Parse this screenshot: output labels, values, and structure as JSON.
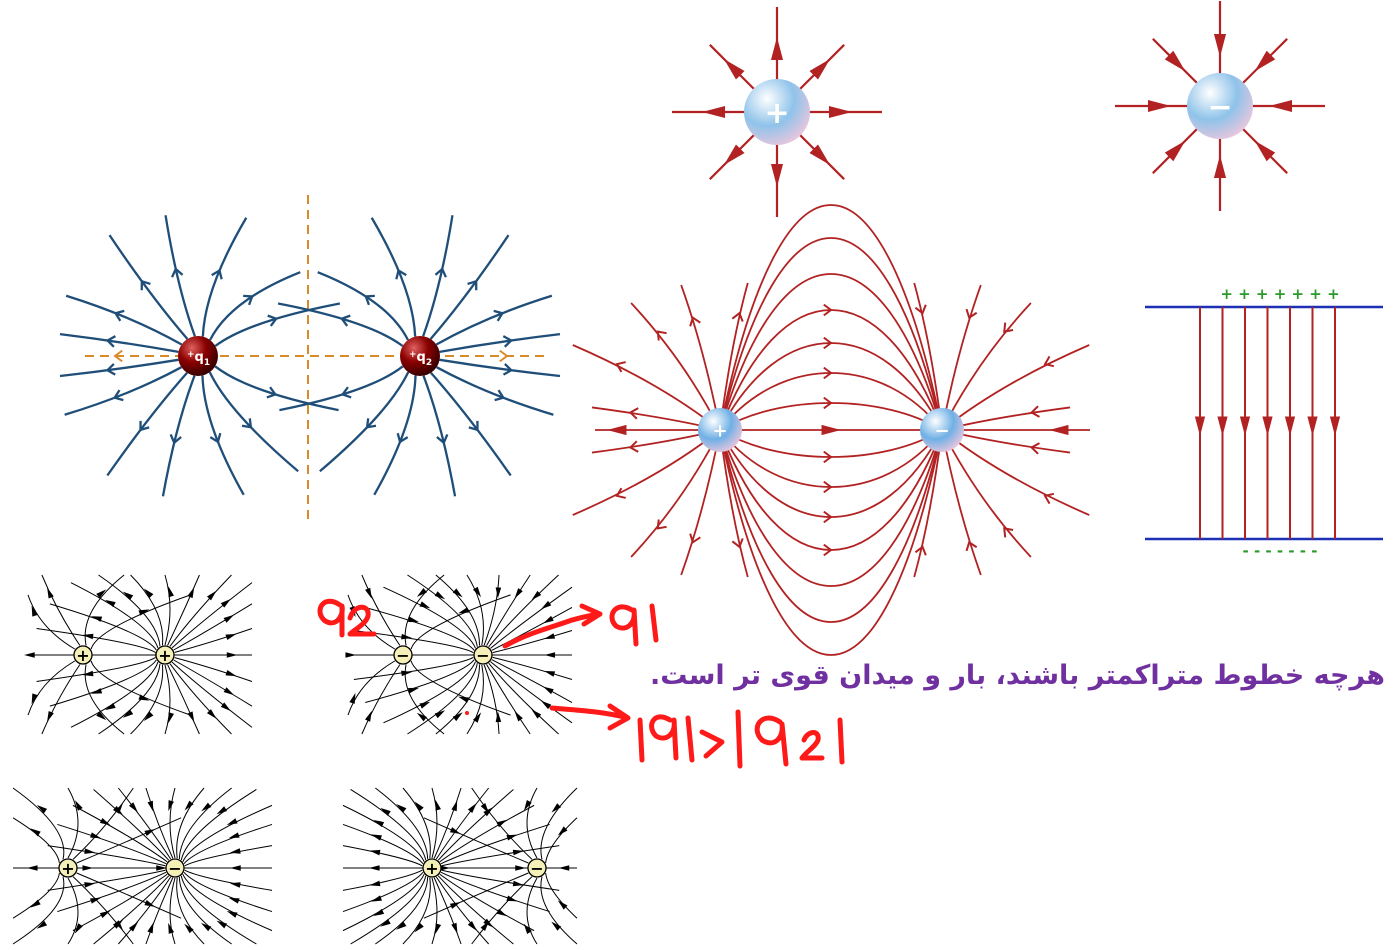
{
  "diagram": {
    "charges": {
      "positive_sign": "+",
      "negative_sign": "−",
      "q1": "q",
      "q1_sub": "1",
      "q1_prefix": "+",
      "q2": "q",
      "q2_sub": "2",
      "q2_prefix": "+"
    },
    "plates": {
      "top_signs": "+ + + + + + +",
      "bottom_signs": "- - - - - - -"
    },
    "caption": "هرچه خطوط متراکمتر باشند، بار و میدان قوی تر است.",
    "colors": {
      "red_field": "#b22222",
      "blue_field": "#1f4e79",
      "dashed_orange": "#d98a2b",
      "plate_blue": "#1c2fb5",
      "plus_green": "#2a9a2a",
      "handwriting_red": "#ff0000",
      "caption_purple": "#7030a0",
      "small_charge_fill": "#f5efb8"
    }
  }
}
